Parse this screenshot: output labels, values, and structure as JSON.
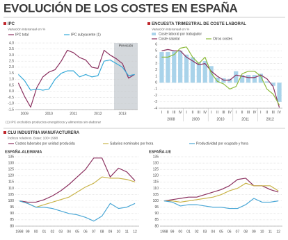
{
  "title": "EVOLUCIÓN DE LOS COSTES EN ESPAÑA",
  "chart_data": [
    {
      "type": "line",
      "title": "IPC",
      "subtitle": "Variación interanual en %",
      "footnote": "(1) IPC excluidos productos energéticos y alimentos sin elaborar",
      "annotation": "Previsión",
      "grid": true,
      "categories": [
        null,
        "2009",
        null,
        null,
        null,
        "2010",
        null,
        null,
        null,
        "2011",
        null,
        null,
        null,
        "2012",
        null,
        null,
        null,
        "2013",
        null,
        null
      ],
      "ylim": [
        -1.5,
        4
      ],
      "yticks": [
        -1.5,
        {
          "value": -1,
          "label": "-1.0"
        },
        -0.5,
        {
          "value": 0,
          "label": "0.0"
        },
        0.5,
        {
          "value": 1,
          "label": "1.0"
        },
        1.5,
        {
          "value": 2,
          "label": "2.0"
        },
        2.5,
        {
          "value": 3,
          "label": "3.0"
        },
        3.5,
        {
          "value": 4,
          "label": "4.0"
        }
      ],
      "series": [
        {
          "name": "IPC total",
          "color": "#8a2f5e",
          "values": [
            0.7,
            -0.4,
            -1.3,
            0.3,
            1.2,
            1.6,
            1.8,
            2.5,
            3.4,
            3.2,
            2.8,
            2.6,
            2.0,
            1.9,
            3.4,
            3.0,
            2.7,
            2.3,
            1.1,
            1.4
          ]
        },
        {
          "name": "IPC subyacente (1)",
          "color": "#35a9d8",
          "values": [
            1.4,
            0.9,
            0.1,
            0.2,
            0.1,
            0.2,
            1.0,
            1.5,
            1.7,
            1.7,
            1.2,
            1.4,
            1.2,
            1.3,
            2.5,
            2.6,
            2.3,
            2.0,
            1.3,
            1.4
          ]
        }
      ]
    },
    {
      "type": "combo",
      "title": "ENCUESTA TRIMESTRAL DE COSTE LABORAL",
      "subtitle": "Variación interanual en %",
      "grid": true,
      "categories": [
        "I",
        "II",
        "III",
        "IV",
        "I",
        "II",
        "III",
        "IV",
        "I",
        "II",
        "III",
        "IV",
        "I",
        "II",
        "III",
        "IV",
        "I",
        "II",
        "III",
        "IV"
      ],
      "years": [
        "2008",
        "2009",
        "2010",
        "2011",
        "2012"
      ],
      "ylim": [
        -4,
        6
      ],
      "yticks": [
        -4,
        -3,
        -2,
        -1,
        0,
        1,
        2,
        3,
        4,
        5,
        6
      ],
      "series": [
        {
          "name": "Coste laboral por trabajador",
          "type": "bar",
          "color": "#a9d3ea",
          "values": [
            4.8,
            4.8,
            4.9,
            5.0,
            4.4,
            4.0,
            3.2,
            3.4,
            2.6,
            0.8,
            0.7,
            0.6,
            1.8,
            1.2,
            1.2,
            1.2,
            1.4,
            0.2,
            -0.5,
            -3.0
          ]
        },
        {
          "name": "Coste salarial",
          "type": "line",
          "color": "#8a2f5e",
          "values": [
            5.0,
            5.2,
            5.0,
            5.0,
            4.0,
            3.4,
            2.8,
            3.0,
            1.8,
            1.0,
            0.4,
            0.4,
            1.2,
            1.0,
            0.8,
            0.8,
            1.2,
            0.6,
            -0.6,
            -3.9
          ]
        },
        {
          "name": "Otros costes",
          "type": "line",
          "color": "#8dbb3c",
          "values": [
            4.0,
            4.0,
            4.4,
            5.4,
            5.6,
            4.0,
            3.0,
            4.0,
            1.5,
            0.2,
            -0.2,
            -1.0,
            -0.6,
            1.4,
            1.8,
            1.8,
            1.0,
            -1.0,
            -1.8,
            -3.5
          ]
        }
      ]
    },
    {
      "type": "line",
      "title": "CLU INDUSTRIA MANUFACTURERA",
      "subtitle": "Índices relativos. Base: 100=1998",
      "panel": "ESPAÑA-ALEMANIA",
      "grid": true,
      "categories": [
        "1998",
        "99",
        "00",
        "01",
        "02",
        "03",
        "04",
        "05",
        "06",
        "07",
        "08",
        "09",
        "10",
        "11",
        "12"
      ],
      "ylim": [
        80,
        135
      ],
      "yticks": [
        80,
        85,
        90,
        95,
        100,
        105,
        110,
        115,
        120,
        125,
        130,
        135
      ],
      "series": [
        {
          "name": "Costes laborales por unidad producida",
          "color": "#8a2f5e",
          "values": [
            100,
            99,
            99,
            101,
            104,
            108,
            113,
            119,
            125,
            134,
            134,
            119,
            126,
            123,
            116
          ]
        },
        {
          "name": "Salarios nominales por hora",
          "color": "#c9b44a",
          "values": [
            100,
            98,
            95,
            97,
            99,
            101,
            103,
            107,
            111,
            114,
            119,
            118,
            118,
            117,
            115
          ]
        },
        {
          "name": "Productividad por ocupado y hora",
          "color": "#4aa7d6",
          "values": [
            100,
            98,
            95,
            95,
            94,
            92,
            90,
            89,
            87,
            84,
            88,
            98,
            94,
            95,
            98
          ]
        }
      ]
    },
    {
      "type": "line",
      "panel": "ESPAÑA-UE",
      "grid": true,
      "categories": [
        "1998",
        "99",
        "00",
        "01",
        "02",
        "03",
        "04",
        "05",
        "06",
        "07",
        "08",
        "09",
        "10",
        "11",
        "12"
      ],
      "ylim": [
        80,
        135
      ],
      "yticks": [
        80,
        85,
        90,
        95,
        100,
        105,
        110,
        115,
        120,
        125,
        130,
        135
      ],
      "series": [
        {
          "color": "#8a2f5e",
          "values": [
            100,
            101,
            102,
            103,
            103,
            105,
            107,
            109,
            112,
            117,
            118,
            112,
            112,
            109,
            107
          ]
        },
        {
          "color": "#c9b44a",
          "values": [
            100,
            100,
            99,
            100,
            101,
            102,
            103,
            105,
            108,
            110,
            114,
            112,
            112,
            112,
            108
          ]
        },
        {
          "color": "#4aa7d6",
          "values": [
            100,
            99,
            96,
            97,
            97,
            96,
            95,
            95,
            94,
            94,
            97,
            102,
            99,
            99,
            100
          ]
        }
      ]
    }
  ]
}
